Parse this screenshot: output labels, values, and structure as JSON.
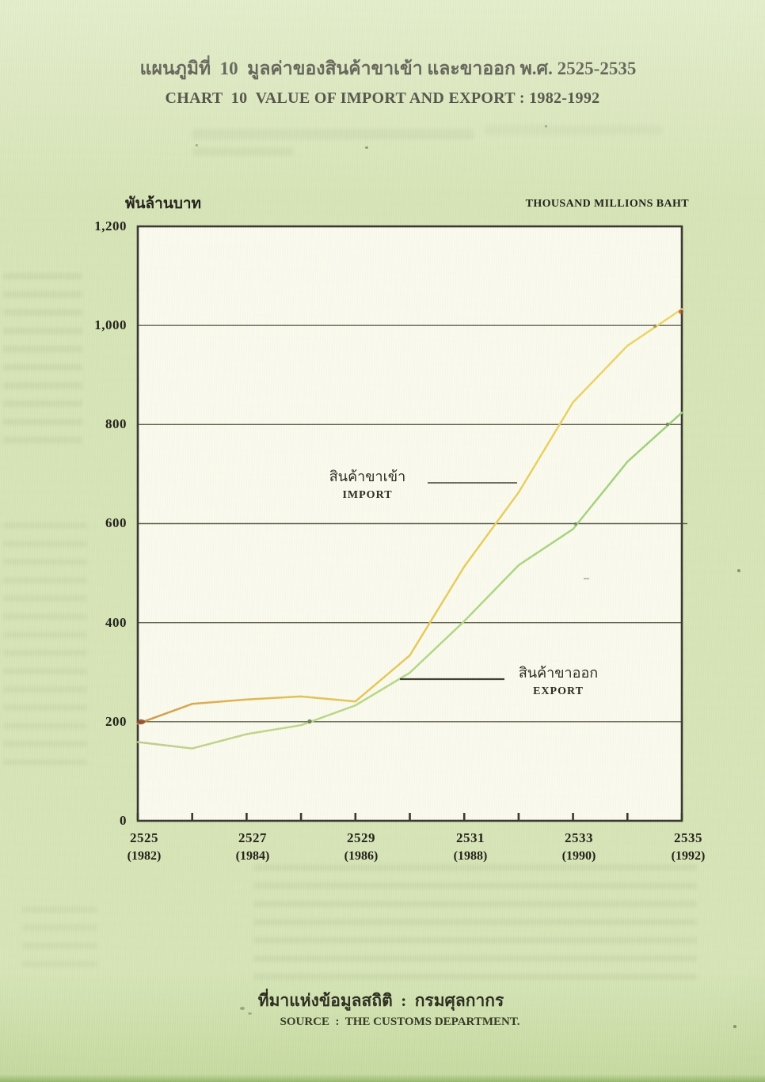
{
  "chart_data": {
    "type": "line",
    "title_th": "แผนภูมิที่  10  มูลค่าของสินค้าขาเข้า และขาออก พ.ศ. 2525-2535",
    "title_en": "CHART  10  VALUE OF IMPORT AND EXPORT : 1982-1992",
    "y_axis_label_th": "พันล้านบาท",
    "y_axis_label_en": "THOUSAND MILLIONS BAHT",
    "ylim": [
      0,
      1200
    ],
    "y_ticks": [
      "1,200",
      "1,000",
      "800",
      "600",
      "400",
      "200",
      "0"
    ],
    "gridlines": [
      200,
      400,
      600,
      800,
      1000
    ],
    "grid": "horizontal",
    "x_years_be": [
      2525,
      2526,
      2527,
      2528,
      2529,
      2530,
      2531,
      2532,
      2533,
      2534,
      2535
    ],
    "x_years_ce": [
      1982,
      1983,
      1984,
      1985,
      1986,
      1987,
      1988,
      1989,
      1990,
      1991,
      1992
    ],
    "x_tick_labels": [
      {
        "be": "2525",
        "ce": "(1982)"
      },
      {
        "be": "2527",
        "ce": "(1984)"
      },
      {
        "be": "2529",
        "ce": "(1986)"
      },
      {
        "be": "2531",
        "ce": "(1988)"
      },
      {
        "be": "2533",
        "ce": "(1990)"
      },
      {
        "be": "2535",
        "ce": "(1992)"
      }
    ],
    "series": [
      {
        "id": "import",
        "label_th": "สินค้าขาเข้า",
        "label_en": "IMPORT",
        "color": "#e2bd4e",
        "values": [
          196,
          236,
          245,
          251,
          241,
          334,
          513,
          663,
          845,
          959,
          1033
        ]
      },
      {
        "id": "export",
        "label_th": "สินค้าขาออก",
        "label_en": "EXPORT",
        "color": "#afd783",
        "values": [
          159,
          146,
          175,
          193,
          233,
          299,
          403,
          516,
          589,
          725,
          824
        ]
      }
    ],
    "legend_position": "inline annotations with leader lines",
    "source_th": "ที่มาแห่งข้อมูลสถิติ  :  กรมศุลกากร",
    "source_en": "SOURCE  :  THE CUSTOMS DEPARTMENT."
  }
}
